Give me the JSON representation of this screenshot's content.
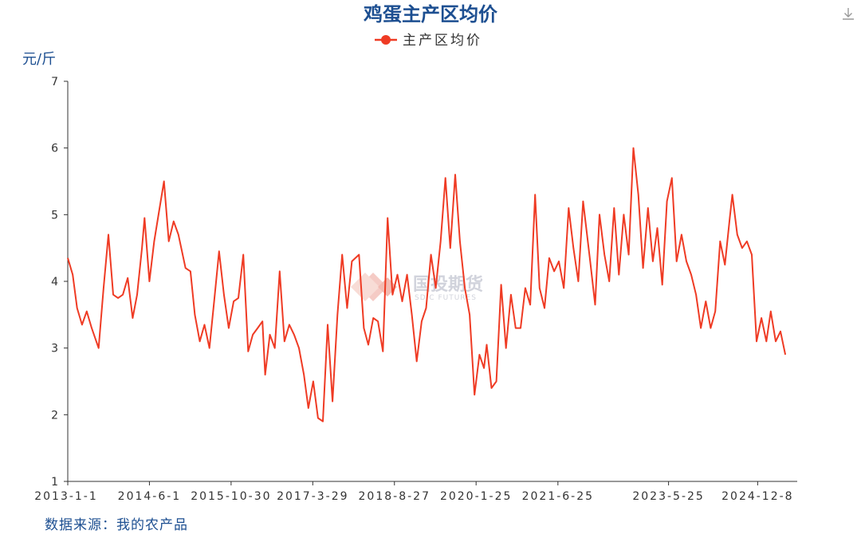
{
  "colors": {
    "line": "#ef3b24",
    "title": "#1d4f91",
    "axis": "#333333"
  },
  "toolbar": {
    "download_icon": "download-icon"
  },
  "watermark": {
    "name_cn": "国投期货",
    "name_en": "SDIC FUTURES"
  },
  "source_text": "数据来源：我的农产品",
  "chart_data": {
    "type": "line",
    "title": "鸡蛋主产区均价",
    "ylabel": "元/斤",
    "xlabel": "",
    "ylim": [
      1,
      7
    ],
    "yticks": [
      "1",
      "2",
      "3",
      "4",
      "5",
      "6",
      "7"
    ],
    "xlim": [
      "2013-01-01",
      "2025-08-15"
    ],
    "xticks": [
      {
        "label": "2013-1-1",
        "date": "2013-01-01"
      },
      {
        "label": "2014-6-1",
        "date": "2014-06-01"
      },
      {
        "label": "2015-10-30",
        "date": "2015-10-30"
      },
      {
        "label": "2017-3-29",
        "date": "2017-03-29"
      },
      {
        "label": "2018-8-27",
        "date": "2018-08-27"
      },
      {
        "label": "2020-1-25",
        "date": "2020-01-25"
      },
      {
        "label": "2021-6-25",
        "date": "2021-06-25"
      },
      {
        "label": "2023-5-25",
        "date": "2023-05-25"
      },
      {
        "label": "2024-12-8",
        "date": "2024-12-08"
      }
    ],
    "legend": "top-center",
    "grid": false,
    "series": [
      {
        "name": "主产区均价",
        "points": [
          [
            "2013-01-01",
            4.35
          ],
          [
            "2013-02-01",
            4.1
          ],
          [
            "2013-03-01",
            3.6
          ],
          [
            "2013-04-01",
            3.35
          ],
          [
            "2013-05-01",
            3.55
          ],
          [
            "2013-06-01",
            3.3
          ],
          [
            "2013-07-15",
            3.0
          ],
          [
            "2013-08-15",
            3.9
          ],
          [
            "2013-09-15",
            4.7
          ],
          [
            "2013-10-15",
            3.8
          ],
          [
            "2013-11-15",
            3.75
          ],
          [
            "2013-12-15",
            3.8
          ],
          [
            "2014-01-15",
            4.05
          ],
          [
            "2014-02-15",
            3.45
          ],
          [
            "2014-03-15",
            3.8
          ],
          [
            "2014-04-15",
            4.5
          ],
          [
            "2014-05-01",
            4.95
          ],
          [
            "2014-06-01",
            4.0
          ],
          [
            "2014-07-01",
            4.6
          ],
          [
            "2014-08-01",
            5.05
          ],
          [
            "2014-09-01",
            5.5
          ],
          [
            "2014-10-01",
            4.6
          ],
          [
            "2014-11-01",
            4.9
          ],
          [
            "2014-12-01",
            4.7
          ],
          [
            "2015-01-15",
            4.2
          ],
          [
            "2015-02-15",
            4.15
          ],
          [
            "2015-03-15",
            3.5
          ],
          [
            "2015-04-15",
            3.1
          ],
          [
            "2015-05-15",
            3.35
          ],
          [
            "2015-06-15",
            3.0
          ],
          [
            "2015-07-15",
            3.7
          ],
          [
            "2015-08-15",
            4.45
          ],
          [
            "2015-09-15",
            3.8
          ],
          [
            "2015-10-15",
            3.3
          ],
          [
            "2015-11-15",
            3.7
          ],
          [
            "2015-12-15",
            3.75
          ],
          [
            "2016-01-15",
            4.4
          ],
          [
            "2016-02-15",
            2.95
          ],
          [
            "2016-03-15",
            3.2
          ],
          [
            "2016-04-15",
            3.3
          ],
          [
            "2016-05-15",
            3.4
          ],
          [
            "2016-06-01",
            2.6
          ],
          [
            "2016-07-01",
            3.2
          ],
          [
            "2016-08-01",
            3.0
          ],
          [
            "2016-09-01",
            4.15
          ],
          [
            "2016-10-01",
            3.1
          ],
          [
            "2016-11-01",
            3.35
          ],
          [
            "2016-12-01",
            3.2
          ],
          [
            "2017-01-01",
            3.0
          ],
          [
            "2017-02-01",
            2.6
          ],
          [
            "2017-03-01",
            2.1
          ],
          [
            "2017-04-01",
            2.5
          ],
          [
            "2017-05-01",
            1.95
          ],
          [
            "2017-06-01",
            1.9
          ],
          [
            "2017-07-01",
            3.35
          ],
          [
            "2017-08-01",
            2.2
          ],
          [
            "2017-09-01",
            3.5
          ],
          [
            "2017-10-01",
            4.4
          ],
          [
            "2017-11-01",
            3.6
          ],
          [
            "2017-12-01",
            4.3
          ],
          [
            "2018-01-15",
            4.4
          ],
          [
            "2018-02-15",
            3.3
          ],
          [
            "2018-03-15",
            3.05
          ],
          [
            "2018-04-15",
            3.45
          ],
          [
            "2018-05-15",
            3.4
          ],
          [
            "2018-06-15",
            2.95
          ],
          [
            "2018-07-15",
            4.95
          ],
          [
            "2018-08-15",
            3.8
          ],
          [
            "2018-09-15",
            4.1
          ],
          [
            "2018-10-15",
            3.7
          ],
          [
            "2018-11-15",
            4.1
          ],
          [
            "2018-12-15",
            3.5
          ],
          [
            "2019-01-15",
            2.8
          ],
          [
            "2019-02-15",
            3.4
          ],
          [
            "2019-03-15",
            3.6
          ],
          [
            "2019-04-15",
            4.4
          ],
          [
            "2019-05-15",
            3.9
          ],
          [
            "2019-06-15",
            4.6
          ],
          [
            "2019-07-15",
            5.55
          ],
          [
            "2019-08-15",
            4.5
          ],
          [
            "2019-09-15",
            5.6
          ],
          [
            "2019-10-15",
            4.6
          ],
          [
            "2019-11-15",
            3.9
          ],
          [
            "2019-12-15",
            3.5
          ],
          [
            "2020-01-15",
            2.3
          ],
          [
            "2020-02-15",
            2.9
          ],
          [
            "2020-03-15",
            2.7
          ],
          [
            "2020-04-01",
            3.05
          ],
          [
            "2020-05-01",
            2.4
          ],
          [
            "2020-06-01",
            2.5
          ],
          [
            "2020-07-01",
            3.95
          ],
          [
            "2020-08-01",
            3.0
          ],
          [
            "2020-09-01",
            3.8
          ],
          [
            "2020-10-01",
            3.3
          ],
          [
            "2020-11-01",
            3.3
          ],
          [
            "2020-12-01",
            3.9
          ],
          [
            "2021-01-01",
            3.65
          ],
          [
            "2021-02-01",
            5.3
          ],
          [
            "2021-03-01",
            3.9
          ],
          [
            "2021-04-01",
            3.6
          ],
          [
            "2021-05-01",
            4.35
          ],
          [
            "2021-06-01",
            4.15
          ],
          [
            "2021-07-01",
            4.3
          ],
          [
            "2021-08-01",
            3.9
          ],
          [
            "2021-09-01",
            5.1
          ],
          [
            "2021-10-01",
            4.5
          ],
          [
            "2021-11-01",
            4.0
          ],
          [
            "2021-12-01",
            5.2
          ],
          [
            "2022-01-15",
            4.3
          ],
          [
            "2022-02-15",
            3.65
          ],
          [
            "2022-03-15",
            5.0
          ],
          [
            "2022-04-15",
            4.4
          ],
          [
            "2022-05-15",
            4.0
          ],
          [
            "2022-06-15",
            5.1
          ],
          [
            "2022-07-15",
            4.1
          ],
          [
            "2022-08-15",
            5.0
          ],
          [
            "2022-09-15",
            4.4
          ],
          [
            "2022-10-15",
            6.0
          ],
          [
            "2022-11-15",
            5.3
          ],
          [
            "2022-12-15",
            4.2
          ],
          [
            "2023-01-15",
            5.1
          ],
          [
            "2023-02-15",
            4.3
          ],
          [
            "2023-03-15",
            4.8
          ],
          [
            "2023-04-15",
            3.95
          ],
          [
            "2023-05-15",
            5.2
          ],
          [
            "2023-06-15",
            5.55
          ],
          [
            "2023-07-15",
            4.3
          ],
          [
            "2023-08-15",
            4.7
          ],
          [
            "2023-09-15",
            4.3
          ],
          [
            "2023-10-15",
            4.1
          ],
          [
            "2023-11-15",
            3.8
          ],
          [
            "2023-12-15",
            3.3
          ],
          [
            "2024-01-15",
            3.7
          ],
          [
            "2024-02-15",
            3.3
          ],
          [
            "2024-03-15",
            3.55
          ],
          [
            "2024-04-15",
            4.6
          ],
          [
            "2024-05-15",
            4.25
          ],
          [
            "2024-06-15",
            4.95
          ],
          [
            "2024-07-01",
            5.3
          ],
          [
            "2024-08-01",
            4.7
          ],
          [
            "2024-09-01",
            4.5
          ],
          [
            "2024-10-01",
            4.6
          ],
          [
            "2024-11-01",
            4.4
          ],
          [
            "2024-12-01",
            3.1
          ],
          [
            "2025-01-01",
            3.45
          ],
          [
            "2025-02-01",
            3.1
          ],
          [
            "2025-03-01",
            3.55
          ],
          [
            "2025-04-01",
            3.1
          ],
          [
            "2025-05-01",
            3.25
          ],
          [
            "2025-06-01",
            2.9
          ]
        ]
      }
    ]
  }
}
